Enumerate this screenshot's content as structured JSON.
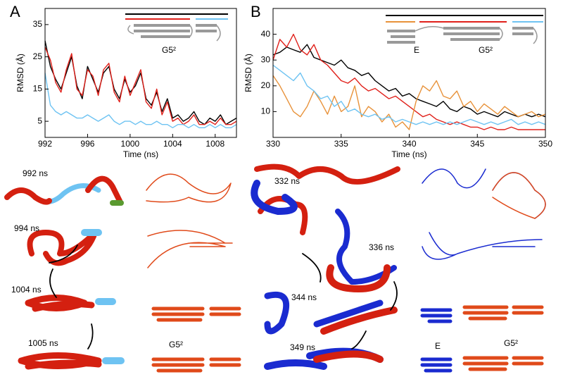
{
  "panels": [
    "A",
    "B"
  ],
  "chart_data": [
    {
      "type": "line",
      "xlabel": "Time (ns)",
      "ylabel": "RMSD (Å)",
      "x": [
        992,
        992.5,
        993,
        993.5,
        994,
        994.5,
        995,
        995.5,
        996,
        996.5,
        997,
        997.5,
        998,
        998.5,
        999,
        999.5,
        1000,
        1000.5,
        1001,
        1001.5,
        1002,
        1002.5,
        1003,
        1003.5,
        1004,
        1004.5,
        1005,
        1005.5,
        1006,
        1006.5,
        1007,
        1007.5,
        1008,
        1008.5,
        1009,
        1009.5,
        1010
      ],
      "xlim": [
        992,
        1010
      ],
      "xticks": [
        992,
        996,
        1000,
        1004,
        1008
      ],
      "ylim": [
        0,
        40
      ],
      "yticks": [
        5,
        15,
        25,
        35
      ],
      "annotations": [
        "G5²"
      ],
      "series": [
        {
          "color": "#000000",
          "values": [
            30,
            22,
            18,
            15,
            20,
            25,
            16,
            12,
            22,
            18,
            14,
            20,
            22,
            15,
            12,
            18,
            14,
            16,
            20,
            12,
            10,
            14,
            8,
            12,
            6,
            7,
            5,
            6,
            8,
            5,
            4,
            6,
            5,
            7,
            4,
            5,
            6
          ]
        },
        {
          "color": "#e0201a",
          "values": [
            28,
            24,
            17,
            14,
            21,
            26,
            15,
            13,
            21,
            19,
            13,
            21,
            23,
            14,
            11,
            19,
            13,
            17,
            21,
            11,
            9,
            15,
            7,
            11,
            5,
            6,
            4,
            5,
            7,
            4,
            4,
            5,
            4,
            6,
            4,
            4,
            5
          ]
        },
        {
          "color": "#6ec3f2",
          "values": [
            20,
            10,
            8,
            7,
            8,
            7,
            6,
            6,
            7,
            6,
            5,
            6,
            7,
            5,
            4,
            5,
            5,
            4,
            5,
            4,
            4,
            5,
            4,
            4,
            3,
            4,
            4,
            3,
            4,
            3,
            3,
            4,
            3,
            4,
            3,
            3,
            4
          ]
        }
      ]
    },
    {
      "type": "line",
      "xlabel": "Time (ns)",
      "ylabel": "RMSD (Å)",
      "x": [
        330,
        330.5,
        331,
        331.5,
        332,
        332.5,
        333,
        333.5,
        334,
        334.5,
        335,
        335.5,
        336,
        336.5,
        337,
        337.5,
        338,
        338.5,
        339,
        339.5,
        340,
        340.5,
        341,
        341.5,
        342,
        342.5,
        343,
        343.5,
        344,
        344.5,
        345,
        345.5,
        346,
        346.5,
        347,
        347.5,
        348,
        348.5,
        349,
        349.5,
        350
      ],
      "xlim": [
        330,
        350
      ],
      "xticks": [
        330,
        335,
        340,
        345,
        350
      ],
      "ylim": [
        0,
        50
      ],
      "yticks": [
        10,
        20,
        30,
        40
      ],
      "annotations": [
        "E",
        "G5²"
      ],
      "series": [
        {
          "color": "#000000",
          "values": [
            32,
            33,
            35,
            34,
            33,
            36,
            31,
            30,
            29,
            28,
            30,
            27,
            26,
            24,
            25,
            22,
            20,
            18,
            19,
            16,
            17,
            15,
            14,
            13,
            12,
            14,
            11,
            10,
            12,
            11,
            9,
            10,
            9,
            8,
            10,
            9,
            8,
            9,
            8,
            9,
            8
          ]
        },
        {
          "color": "#e0201a",
          "values": [
            30,
            38,
            35,
            40,
            34,
            32,
            36,
            30,
            28,
            25,
            22,
            21,
            23,
            20,
            18,
            19,
            17,
            15,
            16,
            14,
            12,
            10,
            8,
            9,
            7,
            6,
            5,
            6,
            5,
            4,
            4,
            3,
            4,
            3,
            3,
            4,
            3,
            3,
            3,
            3,
            3
          ]
        },
        {
          "color": "#e8923a",
          "values": [
            24,
            20,
            15,
            10,
            8,
            12,
            18,
            14,
            9,
            16,
            10,
            12,
            20,
            8,
            12,
            10,
            6,
            9,
            4,
            6,
            3,
            14,
            20,
            18,
            22,
            16,
            15,
            18,
            12,
            14,
            10,
            13,
            11,
            9,
            12,
            10,
            8,
            9,
            10,
            8,
            9
          ]
        },
        {
          "color": "#6ec3f2",
          "values": [
            28,
            26,
            24,
            22,
            25,
            20,
            18,
            15,
            16,
            12,
            14,
            10,
            11,
            9,
            8,
            9,
            7,
            8,
            6,
            7,
            6,
            5,
            6,
            5,
            6,
            5,
            6,
            5,
            6,
            7,
            6,
            5,
            6,
            5,
            6,
            7,
            5,
            6,
            5,
            6,
            5
          ]
        }
      ]
    }
  ],
  "snapshots": [
    "992 ns",
    "994 ns",
    "1004 ns",
    "1005 ns",
    "332 ns",
    "336 ns",
    "344 ns",
    "349 ns"
  ],
  "schematic_labels": [
    "G5²",
    "E",
    "G5²"
  ]
}
